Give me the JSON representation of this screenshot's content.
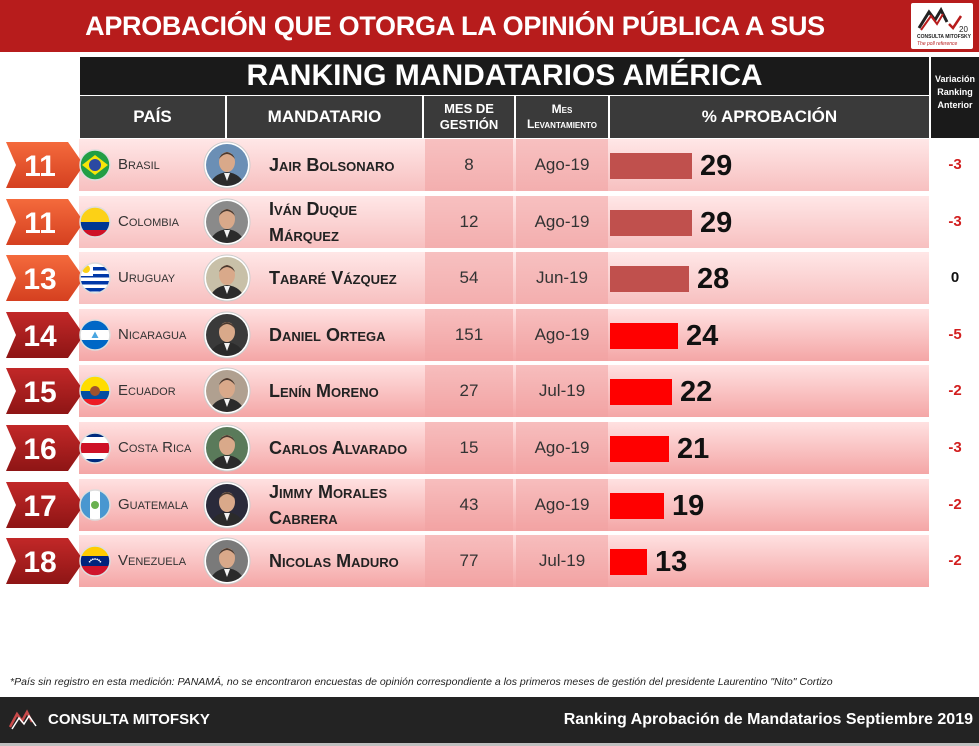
{
  "header": {
    "title": "APROBACIÓN QUE OTORGA LA OPINIÓN PÚBLICA A SUS GOBERNANTES"
  },
  "logo": {
    "line1": "CONSULTA MITOFSKY",
    "line2": "The poll reference",
    "years": "20"
  },
  "chart_data": {
    "type": "table",
    "title": "RANKING MANDATARIOS AMÉRICA",
    "columns": [
      "PAÍS",
      "MANDATARIO",
      "MES DE GESTIÓN",
      "Mes Levantamiento",
      "% APROBACIÓN",
      "Variación Ranking Anterior"
    ],
    "rows": [
      {
        "rank": "11",
        "country": "Brasil",
        "name": "Jair Bolsonaro",
        "mes": "8",
        "lev": "Ago-19",
        "approval": 29,
        "approval_label": "29",
        "var": "-3"
      },
      {
        "rank": "11",
        "country": "Colombia",
        "name": "Iván Duque Márquez",
        "mes": "12",
        "lev": "Ago-19",
        "approval": 29,
        "approval_label": "29",
        "var": "-3"
      },
      {
        "rank": "13",
        "country": "Uruguay",
        "name": "Tabaré Vázquez",
        "mes": "54",
        "lev": "Jun-19",
        "approval": 28,
        "approval_label": "28",
        "var": "0"
      },
      {
        "rank": "14",
        "country": "Nicaragua",
        "name": "Daniel Ortega",
        "mes": "151",
        "lev": "Ago-19",
        "approval": 24,
        "approval_label": "24",
        "var": "-5"
      },
      {
        "rank": "15",
        "country": "Ecuador",
        "name": "Lenín Moreno",
        "mes": "27",
        "lev": "Jul-19",
        "approval": 22,
        "approval_label": "22",
        "var": "-2"
      },
      {
        "rank": "16",
        "country": "Costa Rica",
        "name": "Carlos Alvarado",
        "mes": "15",
        "lev": "Ago-19",
        "approval": 21,
        "approval_label": "21",
        "var": "-3"
      },
      {
        "rank": "17",
        "country": "Guatemala",
        "name": "Jimmy Morales Cabrera",
        "mes": "43",
        "lev": "Ago-19",
        "approval": 19,
        "approval_label": "19",
        "var": "-2"
      },
      {
        "rank": "18",
        "country": "Venezuela",
        "name": "Nicolas Maduro",
        "mes": "77",
        "lev": "Jul-19",
        "approval": 13,
        "approval_label": "13",
        "var": "-2"
      }
    ],
    "bar_color_upper": "#c0504d",
    "bar_color_lower": "#ff0000"
  },
  "table_header": {
    "pais": "PAÍS",
    "mandatario": "MANDATARIO",
    "mes_line1": "MES DE",
    "mes_line2": "GESTIÓN",
    "lev_line1": "Mes",
    "lev_line2": "Levantamiento",
    "aprobacion": "% APROBACIÓN",
    "var_line1": "Variación",
    "var_line2": "Ranking",
    "var_line3": "Anterior"
  },
  "footnote": "*País sin registro en esta medición: PANAMÁ,  no se encontraron encuestas de opinión correspondiente a los primeros meses de gestión del presidente Laurentino \"Nito\" Cortizo",
  "footer": {
    "brand": "CONSULTA MITOFSKY",
    "right": "Ranking Aprobación de Mandatarios Septiembre 2019"
  },
  "flags": [
    "brasil-flag-icon",
    "colombia-flag-icon",
    "uruguay-flag-icon",
    "nicaragua-flag-icon",
    "ecuador-flag-icon",
    "costa-rica-flag-icon",
    "guatemala-flag-icon",
    "venezuela-flag-icon"
  ],
  "colors": {
    "header_red": "#b71c1c",
    "badge_upper": "#e8542e",
    "badge_lower": "#b01e1e",
    "dark": "#1a1a1a"
  }
}
